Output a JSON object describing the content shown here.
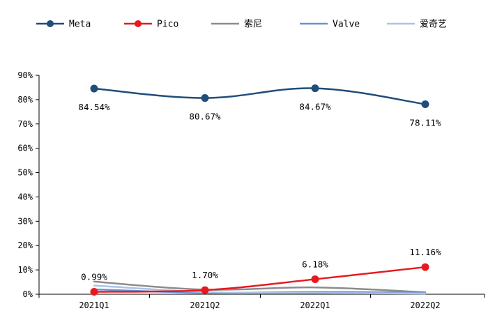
{
  "chart_data": {
    "type": "line",
    "categories": [
      "2021Q1",
      "2021Q2",
      "2022Q1",
      "2022Q2"
    ],
    "ylim": [
      0,
      90
    ],
    "y_ticks": [
      0,
      10,
      20,
      30,
      40,
      50,
      60,
      70,
      80,
      90
    ],
    "y_tick_labels": [
      "0%",
      "10%",
      "20%",
      "30%",
      "40%",
      "50%",
      "60%",
      "70%",
      "80%",
      "90%"
    ],
    "legend_position": "top",
    "grid": false,
    "series": [
      {
        "name": "Meta",
        "color": "#1f4e79",
        "marker": true,
        "values": [
          84.54,
          80.67,
          84.67,
          78.11
        ],
        "labels": [
          "84.54%",
          "80.67%",
          "84.67%",
          "78.11%"
        ]
      },
      {
        "name": "Pico",
        "color": "#e8191e",
        "marker": true,
        "values": [
          0.99,
          1.7,
          6.18,
          11.16
        ],
        "labels": [
          "0.99%",
          "1.70%",
          "6.18%",
          "11.16%"
        ]
      },
      {
        "name": "索尼",
        "color": "#8c8c8c",
        "marker": false,
        "values": [
          5.2,
          1.9,
          2.8,
          0.8
        ]
      },
      {
        "name": "Valve",
        "color": "#6f8fd6",
        "marker": false,
        "values": [
          2.0,
          0.6,
          0.9,
          0.7
        ]
      },
      {
        "name": "爱奇艺",
        "color": "#a9c4e8",
        "marker": false,
        "values": [
          3.6,
          0.9,
          0.5,
          0.3
        ]
      }
    ]
  }
}
